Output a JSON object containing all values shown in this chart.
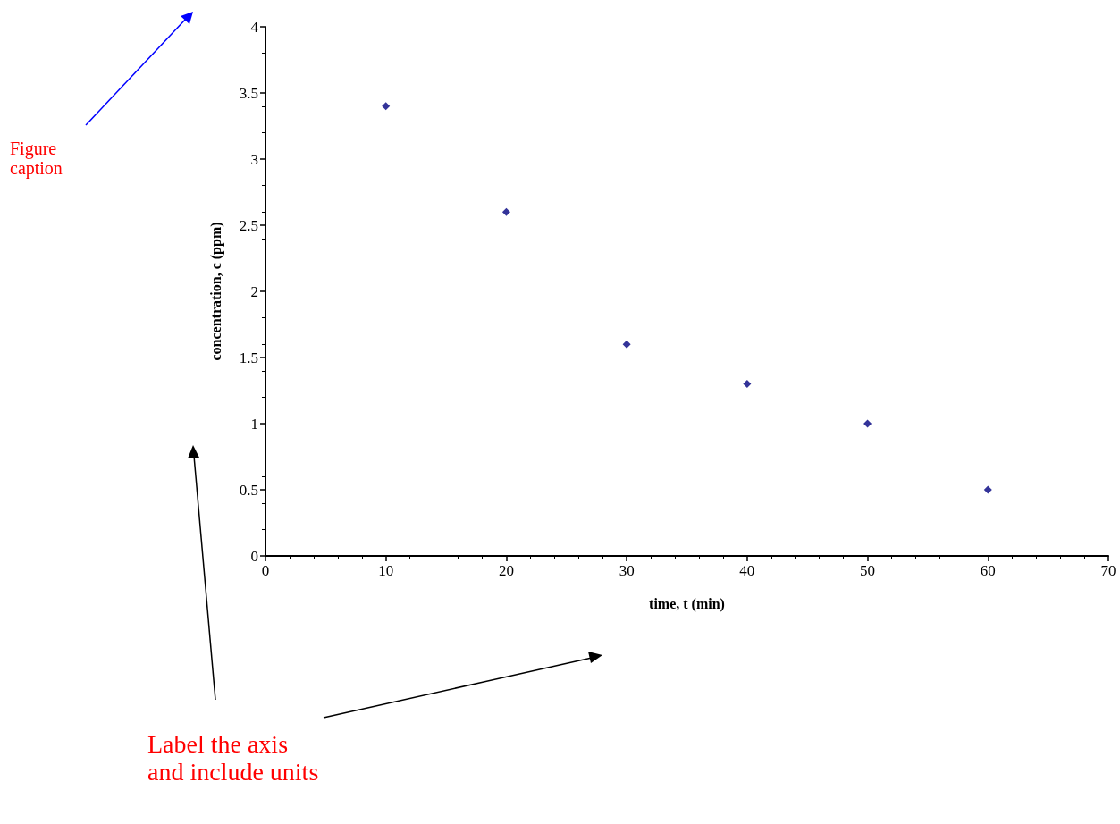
{
  "chart_data": {
    "type": "scatter",
    "xlabel": "time, t (min)",
    "ylabel": "concentration, c (ppm)",
    "x": [
      10,
      20,
      30,
      40,
      50,
      60
    ],
    "values": [
      3.4,
      2.6,
      1.6,
      1.3,
      1.0,
      0.5
    ],
    "color": "#000080",
    "marker": "diamond",
    "xlim": [
      0,
      70
    ],
    "xticks": [
      0,
      10,
      20,
      30,
      40,
      50,
      60,
      70
    ],
    "ylim": [
      0,
      4
    ],
    "yticks": [
      0,
      0.5,
      1,
      1.5,
      2,
      2.5,
      3,
      3.5,
      4
    ],
    "annotations": [
      "Figure caption",
      "Label the axis and include units"
    ]
  }
}
